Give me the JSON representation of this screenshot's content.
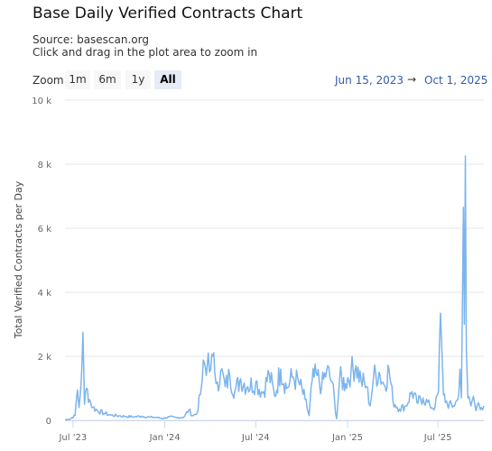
{
  "header": {
    "title": "Base Daily Verified Contracts Chart",
    "source": "Source: basescan.org",
    "hint": "Click and drag in the plot area to zoom in"
  },
  "zoom": {
    "label": "Zoom",
    "buttons": [
      "1m",
      "6m",
      "1y",
      "All"
    ],
    "active": "All"
  },
  "range": {
    "from": "Jun 15, 2023",
    "arrow": "→",
    "to": "Oct 1, 2025"
  },
  "colors": {
    "line": "#7cb5ec",
    "grid": "#e6e6e6"
  },
  "chart_data": {
    "type": "line",
    "title": "Base Daily Verified Contracts Chart",
    "subtitle": "Source: basescan.org",
    "ylabel": "Total Verified Contracts per Day",
    "xlabel": "",
    "ylim": [
      0,
      10000
    ],
    "xlim": [
      "2023-06-15",
      "2025-10-01"
    ],
    "y_ticks": [
      {
        "value": 0,
        "label": "0"
      },
      {
        "value": 2000,
        "label": "2 k"
      },
      {
        "value": 4000,
        "label": "4 k"
      },
      {
        "value": 6000,
        "label": "6 k"
      },
      {
        "value": 8000,
        "label": "8 k"
      },
      {
        "value": 10000,
        "label": "10 k"
      }
    ],
    "x_ticks": [
      {
        "date": "2023-07-01",
        "label": "Jul '23"
      },
      {
        "date": "2024-01-01",
        "label": "Jan '24"
      },
      {
        "date": "2024-07-01",
        "label": "Jul '24"
      },
      {
        "date": "2025-01-01",
        "label": "Jan '25"
      },
      {
        "date": "2025-07-01",
        "label": "Jul '25"
      }
    ],
    "grid": true,
    "legend": "none",
    "series": [
      {
        "points": [
          [
            "2023-06-15",
            20
          ],
          [
            "2023-06-25",
            40
          ],
          [
            "2023-07-05",
            150
          ],
          [
            "2023-07-10",
            950
          ],
          [
            "2023-07-13",
            400
          ],
          [
            "2023-07-17",
            1100
          ],
          [
            "2023-07-21",
            2750
          ],
          [
            "2023-07-24",
            500
          ],
          [
            "2023-07-28",
            1000
          ],
          [
            "2023-08-03",
            650
          ],
          [
            "2023-08-10",
            400
          ],
          [
            "2023-08-20",
            300
          ],
          [
            "2023-09-01",
            220
          ],
          [
            "2023-09-15",
            160
          ],
          [
            "2023-10-01",
            140
          ],
          [
            "2023-10-15",
            120
          ],
          [
            "2023-11-01",
            110
          ],
          [
            "2023-11-15",
            130
          ],
          [
            "2023-12-01",
            100
          ],
          [
            "2023-12-15",
            90
          ],
          [
            "2023-12-28",
            60
          ],
          [
            "2024-01-10",
            110
          ],
          [
            "2024-01-25",
            80
          ],
          [
            "2024-02-08",
            100
          ],
          [
            "2024-02-18",
            330
          ],
          [
            "2024-02-25",
            150
          ],
          [
            "2024-03-05",
            200
          ],
          [
            "2024-03-12",
            800
          ],
          [
            "2024-03-16",
            1300
          ],
          [
            "2024-03-20",
            1800
          ],
          [
            "2024-03-24",
            1400
          ],
          [
            "2024-03-28",
            2100
          ],
          [
            "2024-04-02",
            1600
          ],
          [
            "2024-04-06",
            2000
          ],
          [
            "2024-04-10",
            1500
          ],
          [
            "2024-04-15",
            1200
          ],
          [
            "2024-04-22",
            1550
          ],
          [
            "2024-05-01",
            1050
          ],
          [
            "2024-05-10",
            1400
          ],
          [
            "2024-05-20",
            900
          ],
          [
            "2024-06-01",
            1300
          ],
          [
            "2024-06-15",
            1050
          ],
          [
            "2024-07-01",
            1200
          ],
          [
            "2024-07-15",
            850
          ],
          [
            "2024-07-28",
            1450
          ],
          [
            "2024-08-08",
            750
          ],
          [
            "2024-08-20",
            1600
          ],
          [
            "2024-09-01",
            1000
          ],
          [
            "2024-09-12",
            1350
          ],
          [
            "2024-09-25",
            1200
          ],
          [
            "2024-10-08",
            650
          ],
          [
            "2024-10-16",
            150
          ],
          [
            "2024-10-22",
            1250
          ],
          [
            "2024-11-01",
            1400
          ],
          [
            "2024-11-10",
            1050
          ],
          [
            "2024-11-20",
            1550
          ],
          [
            "2024-12-01",
            1200
          ],
          [
            "2024-12-10",
            50
          ],
          [
            "2024-12-16",
            1300
          ],
          [
            "2024-12-28",
            1150
          ],
          [
            "2025-01-08",
            1550
          ],
          [
            "2025-01-18",
            1700
          ],
          [
            "2025-01-28",
            1250
          ],
          [
            "2025-02-08",
            1050
          ],
          [
            "2025-02-15",
            450
          ],
          [
            "2025-02-22",
            1350
          ],
          [
            "2025-03-05",
            1500
          ],
          [
            "2025-03-15",
            1100
          ],
          [
            "2025-03-25",
            1600
          ],
          [
            "2025-04-02",
            600
          ],
          [
            "2025-04-15",
            350
          ],
          [
            "2025-04-28",
            450
          ],
          [
            "2025-05-10",
            900
          ],
          [
            "2025-05-20",
            550
          ],
          [
            "2025-06-01",
            700
          ],
          [
            "2025-06-15",
            450
          ],
          [
            "2025-06-25",
            400
          ],
          [
            "2025-07-02",
            900
          ],
          [
            "2025-07-06",
            3350
          ],
          [
            "2025-07-09",
            2200
          ],
          [
            "2025-07-12",
            800
          ],
          [
            "2025-07-20",
            500
          ],
          [
            "2025-08-01",
            450
          ],
          [
            "2025-08-10",
            650
          ],
          [
            "2025-08-14",
            1600
          ],
          [
            "2025-08-17",
            700
          ],
          [
            "2025-08-21",
            6650
          ],
          [
            "2025-08-23",
            3000
          ],
          [
            "2025-08-25",
            8250
          ],
          [
            "2025-08-27",
            2200
          ],
          [
            "2025-08-30",
            700
          ],
          [
            "2025-09-05",
            450
          ],
          [
            "2025-09-10",
            750
          ],
          [
            "2025-09-15",
            300
          ],
          [
            "2025-09-20",
            550
          ],
          [
            "2025-09-26",
            400
          ],
          [
            "2025-10-01",
            450
          ]
        ]
      }
    ]
  }
}
